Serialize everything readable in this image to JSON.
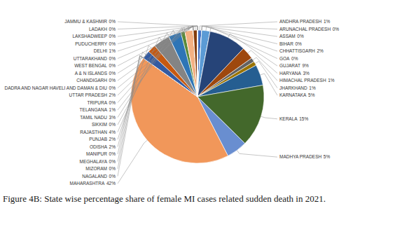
{
  "chart_data": {
    "type": "pie",
    "title": "Figure 4B: State wise percentage share of female MI cases related sudden death in 2021.",
    "categories": [
      "ANDHRA PRADESH",
      "ARUNACHAL PRADESH",
      "ASSAM",
      "BIHAR",
      "CHHATTISGARH",
      "GOA",
      "GUJARAT",
      "HARYANA",
      "HIMACHAL PRADESH",
      "JHARKHAND",
      "KARNATAKA",
      "KERALA",
      "MADHYA PRADESH",
      "MAHARASHTRA",
      "MANIPUR",
      "MEGHALAYA",
      "MIZORAM",
      "NAGALAND",
      "ODISHA",
      "PUNJAB",
      "RAJASTHAN",
      "SIKKIM",
      "TAMIL NADU",
      "TELANGANA",
      "TRIPURA",
      "UTTAR PRADESH",
      "UTTARAKHAND",
      "WEST BENGAL",
      "A & N ISLANDS",
      "CHANDIGARH",
      "DADRA AND NAGAR HAVELI AND DAMAN & DIU",
      "DELHI",
      "JAMMU & KASHMIR",
      "LADAKH",
      "LAKSHADWEEP",
      "PUDUCHERRY"
    ],
    "values": [
      1,
      0,
      0,
      0,
      2,
      0,
      9,
      3,
      1,
      1,
      5,
      15,
      5,
      42,
      0,
      0,
      0,
      0,
      2,
      2,
      4,
      0,
      3,
      1,
      0,
      2,
      0,
      0,
      0,
      0,
      0,
      1,
      0,
      0,
      0,
      0
    ],
    "value_labels": [
      "1%",
      "0%",
      "0%",
      "0%",
      "2%",
      "0%",
      "9%",
      "3%",
      "1%",
      "1%",
      "5%",
      "15%",
      "5%",
      "42%",
      "0%",
      "0%",
      "0%",
      "0%",
      "2%",
      "2%",
      "4%",
      "0%",
      "3%",
      "1%",
      "0%",
      "2%",
      "0%",
      "0%",
      "0%",
      "0%",
      "0%",
      "1%",
      "0%",
      "0%",
      "0%",
      "0%"
    ],
    "colors": [
      "#4472C4",
      "#ED7D31",
      "#A5A5A5",
      "#FFC000",
      "#5B9BD5",
      "#70AD47",
      "#264478",
      "#9E480E",
      "#636363",
      "#997300",
      "#255E91",
      "#43682B",
      "#698ED0",
      "#F1975A",
      "#B7B7B7",
      "#FFCD33",
      "#7CAFDD",
      "#8CC168",
      "#335AA1",
      "#C65911",
      "#848484",
      "#CC9A00",
      "#2E75B6",
      "#5A8A39",
      "#8FAADC",
      "#F4B183",
      "#C9C9C9",
      "#FFD966",
      "#9DC3E6",
      "#A9D18E",
      "#203864",
      "#843C0C",
      "#525252",
      "#7F6000",
      "#1F4E79",
      "#375623"
    ],
    "data_labels": true
  }
}
